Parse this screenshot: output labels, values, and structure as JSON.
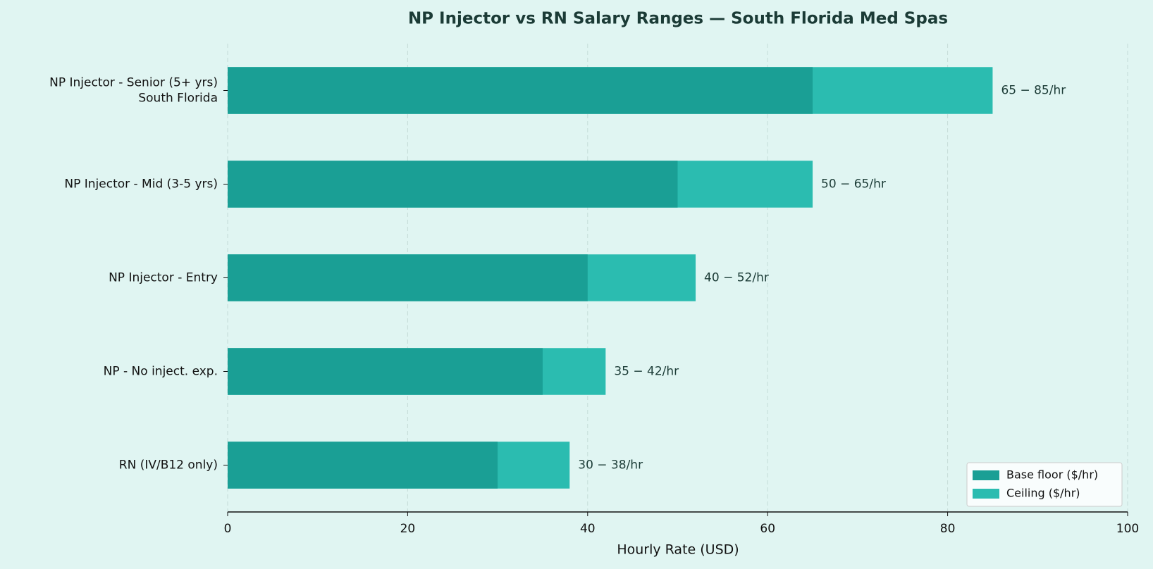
{
  "chart_data": {
    "type": "bar",
    "orientation": "horizontal",
    "title": "NP Injector vs RN Salary Ranges — South Florida Med Spas",
    "x_label": "Hourly Rate (USD)",
    "categories": [
      "NP Injector - Senior (5+ yrs)\nSouth Florida",
      "NP Injector - Mid (3-5 yrs)",
      "NP Injector - Entry",
      "NP - No inject. exp.",
      "RN (IV/B12 only)"
    ],
    "series": [
      {
        "name": "Base floor ($/hr)",
        "color": "#1a9f95",
        "values": [
          65,
          50,
          40,
          35,
          30
        ]
      },
      {
        "name": "Ceiling ($/hr)",
        "color": "#2bbcb0",
        "values": [
          85,
          65,
          52,
          42,
          38
        ]
      }
    ],
    "bar_labels": [
      "65 − 85/hr",
      "50 − 65/hr",
      "40 − 52/hr",
      "35 − 42/hr",
      "30 − 38/hr"
    ],
    "xlim": [
      0,
      100
    ],
    "xticks": [
      0,
      20,
      40,
      60,
      80,
      100
    ],
    "grid": true,
    "legend": "lower right"
  }
}
